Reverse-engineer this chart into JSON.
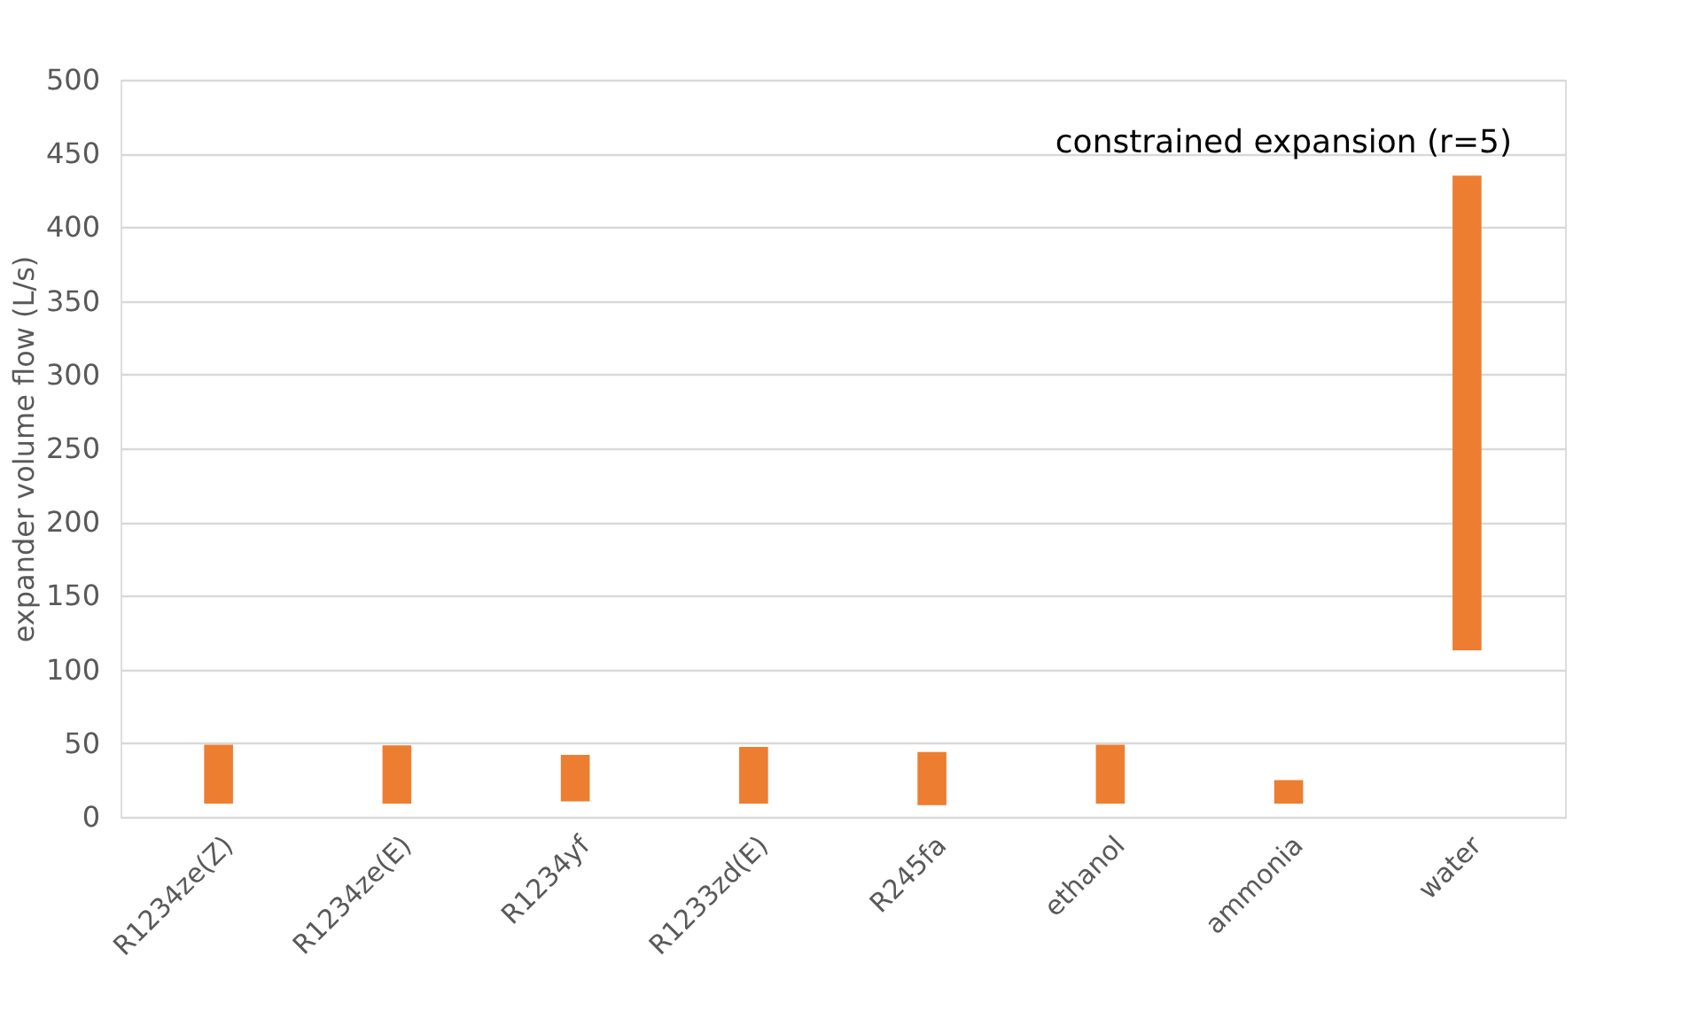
{
  "chart_data": {
    "type": "bar",
    "ylabel": "expander volume flow (L/s)",
    "categories": [
      "R1234ze(Z)",
      "R1234ze(E)",
      "R1234yf",
      "R1233zd(E)",
      "R245fa",
      "ethanol",
      "ammonia",
      "water"
    ],
    "base": [
      9,
      9,
      10.5,
      9,
      8,
      9,
      9,
      113
    ],
    "values": [
      40,
      39.5,
      31.5,
      38.5,
      36,
      40,
      16,
      322
    ],
    "color": "#ed7d31",
    "ylim": [
      0,
      500
    ],
    "yticks": [
      0,
      50,
      100,
      150,
      200,
      250,
      300,
      350,
      400,
      450,
      500
    ],
    "grid": "y",
    "annotations": [
      "constrained expansion (r=5)"
    ]
  }
}
